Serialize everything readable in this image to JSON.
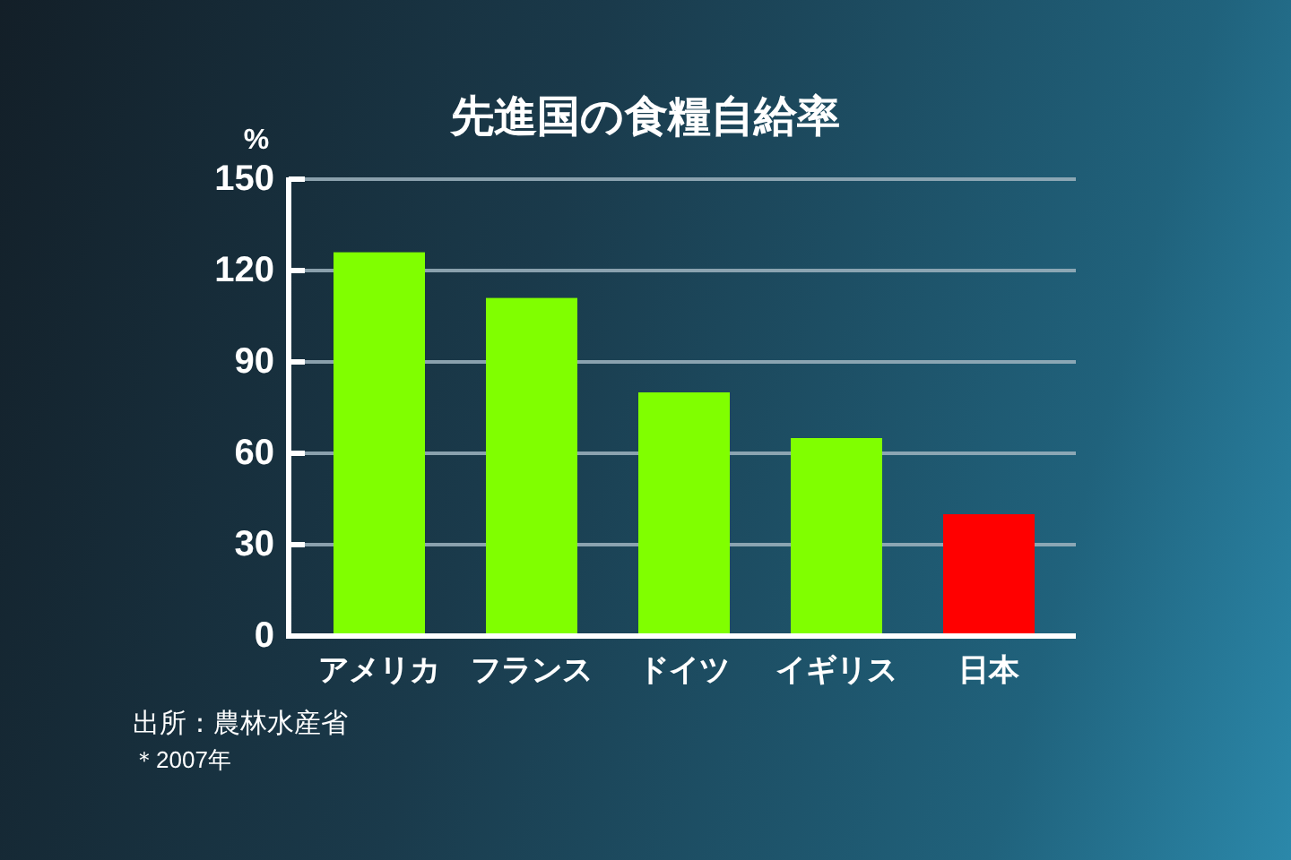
{
  "chart_data": {
    "type": "bar",
    "title": "先進国の食糧自給率",
    "ylabel": "%",
    "categories": [
      "アメリカ",
      "フランス",
      "ドイツ",
      "イギリス",
      "日本"
    ],
    "values": [
      126,
      111,
      80,
      65,
      40
    ],
    "colors": [
      "#80ff00",
      "#80ff00",
      "#80ff00",
      "#80ff00",
      "#ff0000"
    ],
    "ylim": [
      0,
      150
    ],
    "yticks": [
      0,
      30,
      60,
      90,
      120,
      150
    ],
    "grid": "y",
    "annotations": [
      "出所：農林水産省",
      "＊2007年"
    ]
  }
}
